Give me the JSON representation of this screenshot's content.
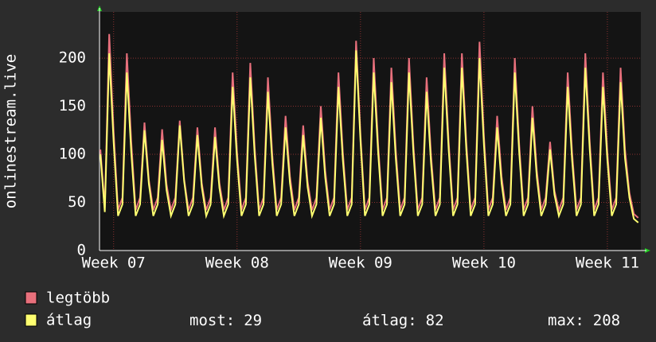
{
  "chart_data": {
    "type": "line",
    "y_label": "onlinestream.live",
    "x": [
      -0.75,
      -0.5,
      -0.25,
      0,
      0.25,
      0.5,
      0.75,
      1,
      1.25,
      1.5,
      1.75,
      2,
      2.25,
      2.5,
      2.75,
      3,
      3.25,
      3.5,
      3.75,
      4,
      4.25,
      4.5,
      4.75,
      5,
      5.25,
      5.5,
      5.75,
      6,
      6.25,
      6.5,
      6.75,
      7,
      7.25,
      7.5,
      7.75,
      8,
      8.25,
      8.5,
      8.75,
      9,
      9.25,
      9.5,
      9.75,
      10,
      10.25,
      10.5,
      10.75,
      11,
      11.25,
      11.5,
      11.75,
      12,
      12.25,
      12.5,
      12.75,
      13,
      13.25,
      13.5,
      13.75,
      14,
      14.25,
      14.5,
      14.75,
      15,
      15.25,
      15.5,
      15.75,
      16,
      16.25,
      16.5,
      16.75,
      17,
      17.25,
      17.5,
      17.75,
      18,
      18.25,
      18.5,
      18.75,
      19,
      19.25,
      19.5,
      19.75,
      20,
      20.25,
      20.5,
      20.75,
      21,
      21.25,
      21.5,
      21.75,
      22,
      22.25,
      22.5,
      22.75,
      23,
      23.25,
      23.5,
      23.75,
      24,
      24.25,
      24.5,
      24.75,
      25,
      25.25,
      25.5,
      25.75,
      26,
      26.25,
      26.5,
      26.75,
      27,
      27.25,
      27.5,
      27.75,
      28,
      28.25,
      28.5,
      28.75,
      29,
      29.25,
      29.5,
      29.75
    ],
    "series": [
      {
        "name": "legtöbb",
        "color": "#e8707c",
        "values": [
          105,
          45,
          225,
          124,
          42,
          55,
          205,
          113,
          42,
          55,
          133,
          73,
          42,
          55,
          126,
          69,
          42,
          55,
          135,
          74,
          42,
          55,
          128,
          70,
          42,
          55,
          128,
          70,
          42,
          55,
          185,
          102,
          42,
          55,
          195,
          107,
          42,
          55,
          180,
          99,
          42,
          55,
          140,
          77,
          42,
          55,
          130,
          72,
          42,
          55,
          150,
          83,
          42,
          55,
          185,
          102,
          42,
          55,
          218,
          120,
          42,
          55,
          200,
          110,
          42,
          55,
          190,
          105,
          42,
          55,
          200,
          110,
          42,
          55,
          180,
          99,
          42,
          55,
          205,
          113,
          42,
          55,
          205,
          113,
          42,
          55,
          217,
          119,
          42,
          55,
          140,
          77,
          42,
          55,
          200,
          110,
          42,
          55,
          150,
          83,
          42,
          55,
          113,
          62,
          42,
          55,
          185,
          102,
          42,
          55,
          205,
          113,
          42,
          55,
          185,
          102,
          42,
          55,
          190,
          105,
          60,
          38,
          34
        ]
      },
      {
        "name": "átlag",
        "color": "#ffff70",
        "values": [
          100,
          40,
          205,
          113,
          36,
          48,
          185,
          102,
          36,
          48,
          125,
          69,
          36,
          48,
          115,
          63,
          36,
          48,
          130,
          72,
          36,
          48,
          120,
          66,
          36,
          48,
          118,
          65,
          36,
          48,
          170,
          94,
          36,
          48,
          180,
          99,
          36,
          48,
          165,
          91,
          36,
          48,
          128,
          70,
          36,
          48,
          120,
          66,
          36,
          48,
          138,
          76,
          36,
          48,
          170,
          94,
          36,
          48,
          208,
          114,
          36,
          48,
          185,
          102,
          36,
          48,
          175,
          96,
          36,
          48,
          185,
          102,
          36,
          48,
          165,
          91,
          36,
          48,
          190,
          105,
          36,
          48,
          190,
          105,
          36,
          48,
          200,
          110,
          36,
          48,
          128,
          70,
          36,
          48,
          185,
          102,
          36,
          48,
          138,
          76,
          36,
          48,
          105,
          58,
          36,
          48,
          170,
          94,
          36,
          48,
          190,
          105,
          36,
          48,
          170,
          94,
          36,
          48,
          175,
          96,
          55,
          33,
          29
        ]
      }
    ],
    "xlim": [
      -0.8,
      29.9
    ],
    "xticks": [
      {
        "value": 0,
        "label": "Week 07"
      },
      {
        "value": 7,
        "label": "Week 08"
      },
      {
        "value": 14,
        "label": "Week 09"
      },
      {
        "value": 21,
        "label": "Week 10"
      },
      {
        "value": 28,
        "label": "Week 11"
      }
    ],
    "ylim": [
      0,
      248
    ],
    "yticks": [
      0,
      50,
      100,
      150,
      200
    ],
    "grid": true,
    "stats": [
      {
        "label": "most:",
        "value": 29
      },
      {
        "label": "átlag:",
        "value": 82
      },
      {
        "label": "max:",
        "value": 208
      }
    ]
  }
}
